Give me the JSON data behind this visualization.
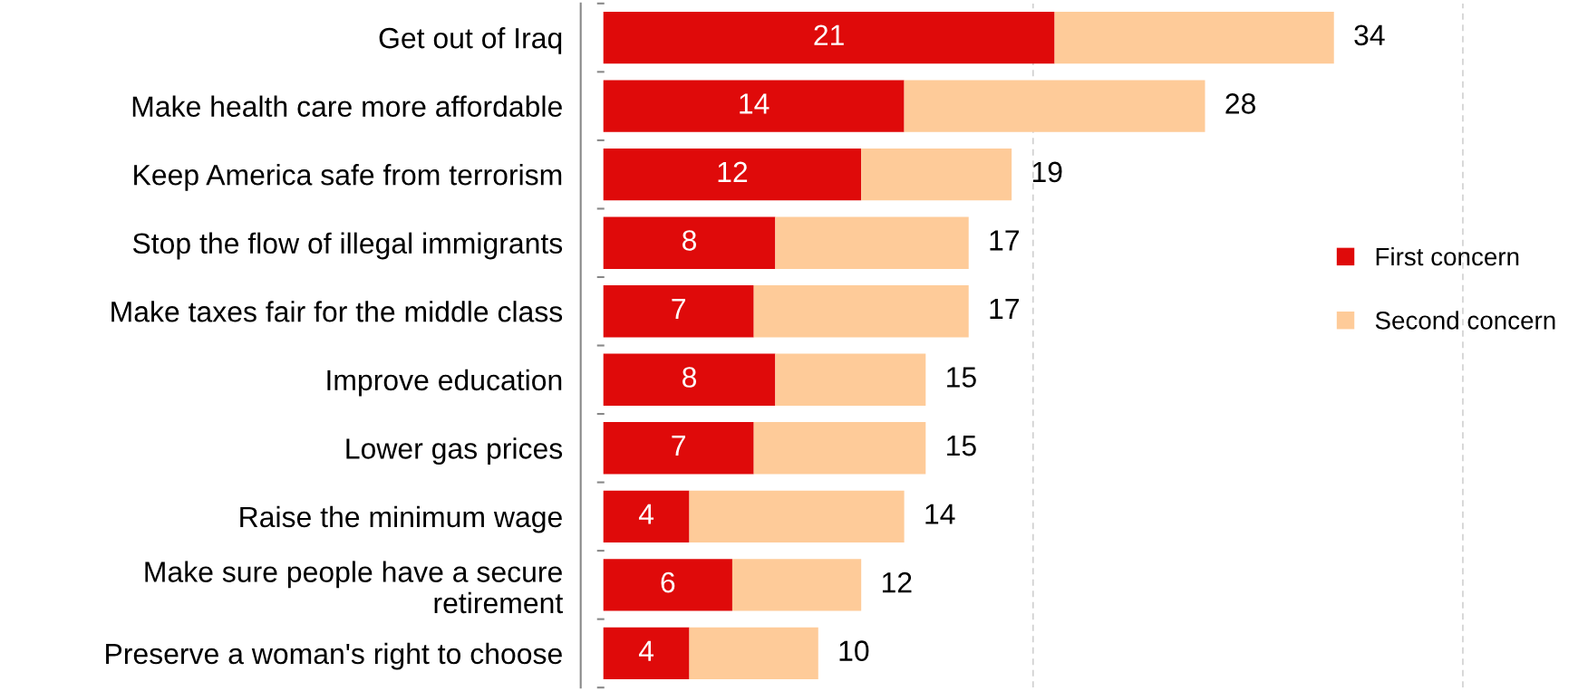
{
  "chart_data": {
    "type": "bar",
    "orientation": "horizontal",
    "stacked": true,
    "categories": [
      "Get out of Iraq",
      "Make health care more affordable",
      "Keep America safe from terrorism",
      "Stop the flow of illegal immigrants",
      "Make taxes fair for the middle class",
      "Improve education",
      "Lower gas prices",
      "Raise the minimum wage",
      "Make sure people have a secure\nretirement",
      "Preserve a woman's right to choose"
    ],
    "series": [
      {
        "name": "First concern",
        "color": "#df0a0a",
        "values": [
          21,
          14,
          12,
          8,
          7,
          8,
          7,
          4,
          6,
          4
        ],
        "value_labels": [
          "21",
          "14",
          "12",
          "8",
          "7",
          "8",
          "7",
          "4",
          "6",
          "4"
        ]
      },
      {
        "name": "Second concern",
        "color": "#fecb99",
        "values": [
          13,
          14,
          7,
          9,
          10,
          7,
          8,
          10,
          6,
          6
        ]
      }
    ],
    "totals": [
      "34",
      "28",
      "19",
      "17",
      "17",
      "15",
      "15",
      "14",
      "12",
      "10"
    ],
    "ref_lines": [
      {
        "axis": "x",
        "value": 20,
        "color": "#c8c8c8",
        "line_style": "dashed"
      },
      {
        "axis": "x",
        "value": 40,
        "color": "#c8c8c8",
        "line_style": "dashed"
      }
    ],
    "tick_labels": "y",
    "legend": "right"
  }
}
